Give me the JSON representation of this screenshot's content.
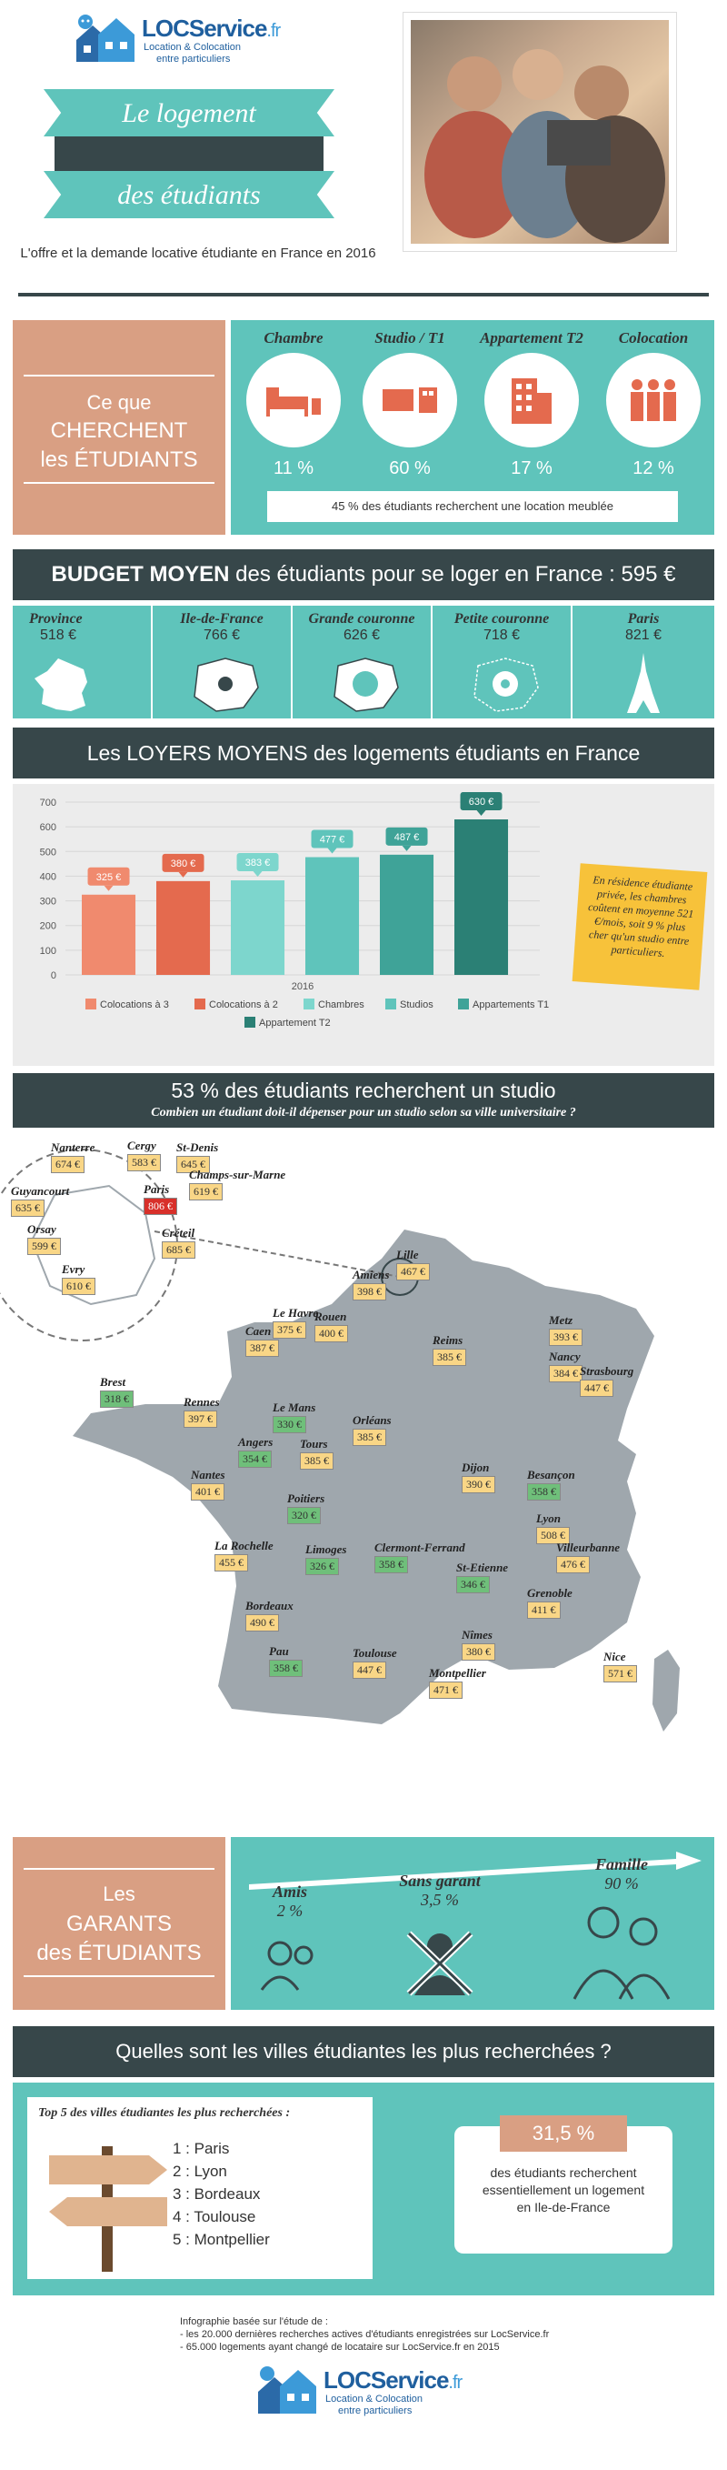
{
  "brand": {
    "name": "LOCService",
    "suffix": ".fr",
    "tagline1": "Location & Colocation",
    "tagline2": "entre particuliers"
  },
  "title": {
    "line1": "Le logement",
    "line2": "des étudiants",
    "subtitle": "L'offre et la demande locative étudiante en France en 2016"
  },
  "search": {
    "heading": [
      "Ce que",
      "CHERCHENT",
      "les ÉTUDIANTS"
    ],
    "items": [
      {
        "label": "Chambre",
        "pct": "11 %",
        "icon": "bed-icon"
      },
      {
        "label": "Studio / T1",
        "pct": "60 %",
        "icon": "sofa-icon"
      },
      {
        "label": "Appartement T2",
        "pct": "17 %",
        "icon": "building-icon"
      },
      {
        "label": "Colocation",
        "pct": "12 %",
        "icon": "people-icon"
      }
    ],
    "note": "45 % des étudiants recherchent une location meublée"
  },
  "budget": {
    "heading_bold": "BUDGET MOYEN",
    "heading_rest": " des étudiants pour se loger en France : 595 €",
    "regions": [
      {
        "name": "Province",
        "value": "518 €",
        "icon": "france-map-icon"
      },
      {
        "name": "Ile-de-France",
        "value": "766 €",
        "icon": "idf-map-icon"
      },
      {
        "name": "Grande couronne",
        "value": "626 €",
        "icon": "grande-couronne-icon"
      },
      {
        "name": "Petite couronne",
        "value": "718 €",
        "icon": "petite-couronne-icon"
      },
      {
        "name": "Paris",
        "value": "821 €",
        "icon": "eiffel-tower-icon"
      }
    ]
  },
  "loyers": {
    "heading_pre": "Les ",
    "heading_bold": "LOYERS MOYENS",
    "heading_rest": " des logements étudiants en France",
    "note": "En résidence étudiante privée, les chambres coûtent en moyenne 521 €/mois, soit 9 % plus cher qu'un studio entre particuliers."
  },
  "chart_data": {
    "type": "bar",
    "categories": [
      "2016"
    ],
    "series": [
      {
        "name": "Colocations à 3",
        "values": [
          325
        ],
        "label": "325 €",
        "color": "#f08a6e"
      },
      {
        "name": "Colocations à 2",
        "values": [
          380
        ],
        "label": "380 €",
        "color": "#e46a4e"
      },
      {
        "name": "Chambres",
        "values": [
          383
        ],
        "label": "383 €",
        "color": "#7dd6cd"
      },
      {
        "name": "Studios",
        "values": [
          477
        ],
        "label": "477 €",
        "color": "#5fc4bb"
      },
      {
        "name": "Appartements T1",
        "values": [
          487
        ],
        "label": "487 €",
        "color": "#3fa398"
      },
      {
        "name": "Appartement T2",
        "values": [
          630
        ],
        "label": "630 €",
        "color": "#2b8075"
      }
    ],
    "yticks": [
      "0",
      "100",
      "200",
      "300",
      "400",
      "500",
      "600",
      "700"
    ],
    "ylim": [
      0,
      700
    ],
    "grid": true,
    "legend": "bottom"
  },
  "studio": {
    "heading": "53 % des étudiants recherchent un studio",
    "sub": "Combien un étudiant doit-il dépenser pour un studio selon sa ville universitaire ?",
    "idf": [
      {
        "city": "Nanterre",
        "price": "674 €"
      },
      {
        "city": "Cergy",
        "price": "583 €"
      },
      {
        "city": "St-Denis",
        "price": "645 €"
      },
      {
        "city": "Guyancourt",
        "price": "635 €"
      },
      {
        "city": "Paris",
        "price": "806 €"
      },
      {
        "city": "Champs-sur-Marne",
        "price": "619 €"
      },
      {
        "city": "Orsay",
        "price": "599 €"
      },
      {
        "city": "Créteil",
        "price": "685 €"
      },
      {
        "city": "Evry",
        "price": "610 €"
      }
    ],
    "cities": [
      {
        "city": "Lille",
        "price": "467 €"
      },
      {
        "city": "Amiens",
        "price": "398 €"
      },
      {
        "city": "Le Havre",
        "price": "375 €"
      },
      {
        "city": "Rouen",
        "price": "400 €"
      },
      {
        "city": "Caen",
        "price": "387 €"
      },
      {
        "city": "Reims",
        "price": "385 €"
      },
      {
        "city": "Metz",
        "price": "393 €"
      },
      {
        "city": "Nancy",
        "price": "384 €"
      },
      {
        "city": "Strasbourg",
        "price": "447 €"
      },
      {
        "city": "Brest",
        "price": "318 €"
      },
      {
        "city": "Rennes",
        "price": "397 €"
      },
      {
        "city": "Le Mans",
        "price": "330 €"
      },
      {
        "city": "Orléans",
        "price": "385 €"
      },
      {
        "city": "Angers",
        "price": "354 €"
      },
      {
        "city": "Tours",
        "price": "385 €"
      },
      {
        "city": "Nantes",
        "price": "401 €"
      },
      {
        "city": "Dijon",
        "price": "390 €"
      },
      {
        "city": "Besançon",
        "price": "358 €"
      },
      {
        "city": "Poitiers",
        "price": "320 €"
      },
      {
        "city": "Lyon",
        "price": "508 €"
      },
      {
        "city": "Villeurbanne",
        "price": "476 €"
      },
      {
        "city": "La Rochelle",
        "price": "455 €"
      },
      {
        "city": "Limoges",
        "price": "326 €"
      },
      {
        "city": "Clermont-Ferrand",
        "price": "358 €"
      },
      {
        "city": "St-Etienne",
        "price": "346 €"
      },
      {
        "city": "Grenoble",
        "price": "411 €"
      },
      {
        "city": "Bordeaux",
        "price": "490 €"
      },
      {
        "city": "Nîmes",
        "price": "380 €"
      },
      {
        "city": "Pau",
        "price": "358 €"
      },
      {
        "city": "Toulouse",
        "price": "447 €"
      },
      {
        "city": "Montpellier",
        "price": "471 €"
      },
      {
        "city": "Nice",
        "price": "571 €"
      }
    ]
  },
  "garants": {
    "heading": [
      "Les",
      "GARANTS",
      "des ÉTUDIANTS"
    ],
    "items": [
      {
        "label": "Amis",
        "pct": "2 %",
        "icon": "friends-icon"
      },
      {
        "label": "Sans garant",
        "pct": "3,5 %",
        "icon": "no-guarantor-icon"
      },
      {
        "label": "Famille",
        "pct": "90 %",
        "icon": "family-icon"
      }
    ]
  },
  "villes": {
    "heading": "Quelles sont les villes étudiantes les plus recherchées ?",
    "top_title": "Top 5 des villes étudiantes les plus recherchées :",
    "top": [
      "1 : Paris",
      "2 : Lyon",
      "3 : Bordeaux",
      "4 : Toulouse",
      "5 : Montpellier"
    ],
    "stat": "31,5 %",
    "stat_text": "des étudiants recherchent essentiellement un logement en Ile-de-France"
  },
  "footer": {
    "lines": [
      "Infographie basée sur l'étude de :",
      "- les 20.000 dernières recherches actives d'étudiants enregistrées sur LocService.fr",
      "- 65.000 logements ayant changé de locataire sur LocService.fr en 2015"
    ]
  },
  "colors": {
    "teal": "#5fc4bb",
    "dark": "#37474a",
    "salmon": "#d99f83",
    "accent": "#e46a4e",
    "yellow": "#f7c23a"
  }
}
